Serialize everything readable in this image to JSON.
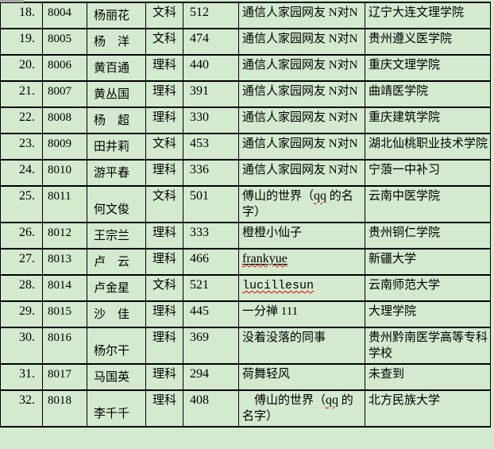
{
  "page": {
    "background_color": "#d3eacf",
    "grid_color": "#000000",
    "misspell_underline_color": "#e00000",
    "visible_row_range": "18-32"
  },
  "table": {
    "rows": [
      {
        "index": "18.",
        "id": "8004",
        "name": "杨丽花",
        "subject": "文科",
        "score": "512",
        "nick": [
          {
            "t": "通信人家园网友 N对N",
            "s": ""
          }
        ],
        "school": "辽宁大连文理学院"
      },
      {
        "index": "19.",
        "id": "8005",
        "name": "杨　洋",
        "subject": "文科",
        "score": "474",
        "nick": [
          {
            "t": "通信人家园网友 N对N",
            "s": ""
          }
        ],
        "school": "贵州遵义医学院"
      },
      {
        "index": "20.",
        "id": "8006",
        "name": "黄百通",
        "subject": "理科",
        "score": "440",
        "nick": [
          {
            "t": "通信人家园网友 N对N",
            "s": ""
          }
        ],
        "school": "重庆文理学院"
      },
      {
        "index": "21.",
        "id": "8007",
        "name": "黄丛国",
        "subject": "理科",
        "score": "391",
        "nick": [
          {
            "t": "通信人家园网友 N对N",
            "s": ""
          }
        ],
        "school": "曲靖医学院"
      },
      {
        "index": "22.",
        "id": "8008",
        "name": "杨　超",
        "subject": "理科",
        "score": "330",
        "nick": [
          {
            "t": "通信人家园网友 N对N",
            "s": ""
          }
        ],
        "school": "重庆建筑学院"
      },
      {
        "index": "23.",
        "id": "8009",
        "name": "田井莉",
        "subject": "文科",
        "score": "453",
        "nick": [
          {
            "t": "通信人家园网友 N对N",
            "s": ""
          }
        ],
        "school": "湖北仙桃职业技术学院"
      },
      {
        "index": "24.",
        "id": "8010",
        "name": "游平春",
        "subject": "理科",
        "score": "336",
        "nick": [
          {
            "t": "通信人家园网友 N对N",
            "s": ""
          }
        ],
        "school": "宁蒗一中补习"
      },
      {
        "index": "25.",
        "id": "8011",
        "name": "何文俊",
        "subject": "文科",
        "score": "501",
        "nick": [
          {
            "t": "傅山的世界（",
            "s": ""
          },
          {
            "t": "qq",
            "s": "spell latin"
          },
          {
            "t": " 的名字）",
            "s": ""
          }
        ],
        "school": "云南中医学院"
      },
      {
        "index": "26.",
        "id": "8012",
        "name": "王宗兰",
        "subject": "理科",
        "score": "333",
        "nick": [
          {
            "t": "橙橙小仙子",
            "s": ""
          }
        ],
        "school": "贵州铜仁学院"
      },
      {
        "index": "27.",
        "id": "8013",
        "name": "卢　云",
        "subject": "理科",
        "score": "466",
        "nick": [
          {
            "t": "frankyue",
            "s": "u spell latin"
          }
        ],
        "school": "新疆大学"
      },
      {
        "index": "28.",
        "id": "8014",
        "name": "卢金星",
        "subject": "文科",
        "score": "521",
        "nick": [
          {
            "t": "lucillesun",
            "s": "mono spell"
          }
        ],
        "school": "云南师范大学"
      },
      {
        "index": "29.",
        "id": "8015",
        "name": "沙　佳",
        "subject": "理科",
        "score": "445",
        "nick": [
          {
            "t": "一分禅 111",
            "s": ""
          }
        ],
        "school": "大理学院"
      },
      {
        "index": "30.",
        "id": "8016",
        "name": "杨尔干",
        "subject": "理科",
        "score": "369",
        "nick": [
          {
            "t": "没着没落的同事",
            "s": ""
          }
        ],
        "school": "贵州黔南医学高等专科学校"
      },
      {
        "index": "31.",
        "id": "8017",
        "name": "马国英",
        "subject": "理科",
        "score": "294",
        "nick": [
          {
            "t": "荷舞轻风",
            "s": ""
          }
        ],
        "school": "未查到"
      },
      {
        "index": "32.",
        "id": "8018",
        "name": "李千千",
        "subject": "理科",
        "score": "408",
        "nick": [
          {
            "t": "　傅山的世界（",
            "s": ""
          },
          {
            "t": "qq",
            "s": "spell latin"
          },
          {
            "t": " 的名字）",
            "s": ""
          }
        ],
        "school": "北方民族大学"
      }
    ]
  }
}
